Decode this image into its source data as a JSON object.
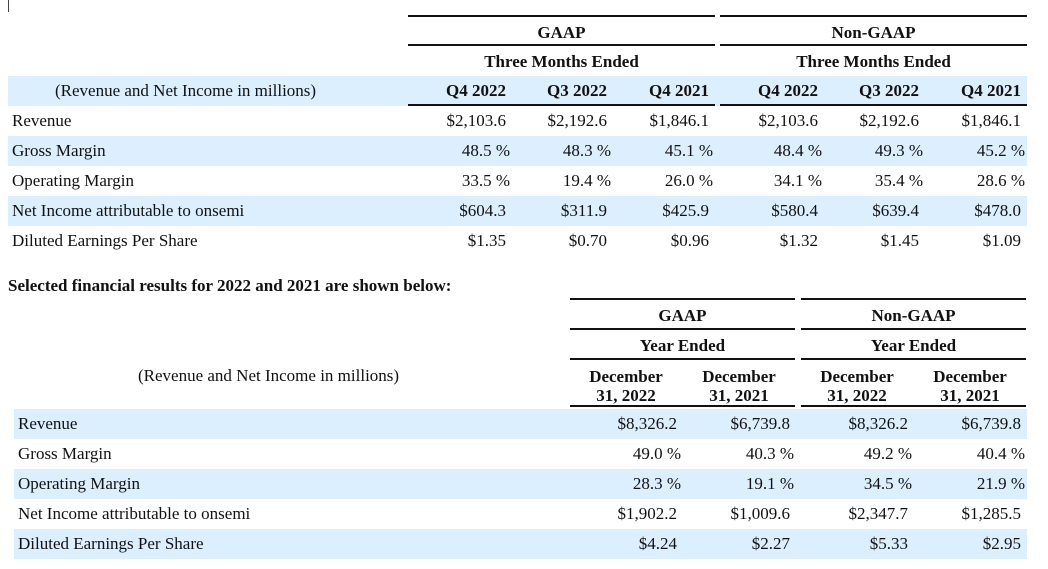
{
  "quarterly": {
    "groups": {
      "gaap": "GAAP",
      "non_gaap": "Non-GAAP"
    },
    "period_label": "Three Months Ended",
    "unit_caption": "(Revenue and Net Income in millions)",
    "columns": [
      "Q4 2022",
      "Q3 2022",
      "Q4 2021",
      "Q4 2022",
      "Q3 2022",
      "Q4 2021"
    ],
    "rows": [
      {
        "label": "Revenue",
        "values": [
          "$2,103.6",
          "$2,192.6",
          "$1,846.1",
          "$2,103.6",
          "$2,192.6",
          "$1,846.1"
        ]
      },
      {
        "label": "Gross Margin",
        "values": [
          "48.5 %",
          "48.3 %",
          "45.1 %",
          "48.4 %",
          "49.3 %",
          "45.2 %"
        ]
      },
      {
        "label": "Operating Margin",
        "values": [
          "33.5 %",
          "19.4 %",
          "26.0 %",
          "34.1 %",
          "35.4 %",
          "28.6 %"
        ]
      },
      {
        "label": "Net Income attributable to onsemi",
        "values": [
          "$604.3",
          "$311.9",
          "$425.9",
          "$580.4",
          "$639.4",
          "$478.0"
        ]
      },
      {
        "label": "Diluted Earnings Per Share",
        "values": [
          "$1.35",
          "$0.70",
          "$0.96",
          "$1.32",
          "$1.45",
          "$1.09"
        ]
      }
    ]
  },
  "section_title": "Selected financial results for 2022 and 2021 are shown below:",
  "annual": {
    "groups": {
      "gaap": "GAAP",
      "non_gaap": "Non-GAAP"
    },
    "period_label": "Year Ended",
    "unit_caption": "(Revenue and Net Income in millions)",
    "columns": [
      [
        "December",
        "31, 2022"
      ],
      [
        "December",
        "31, 2021"
      ],
      [
        "December",
        "31, 2022"
      ],
      [
        "December",
        "31, 2021"
      ]
    ],
    "rows": [
      {
        "label": "Revenue",
        "values": [
          "$8,326.2",
          "$6,739.8",
          "$8,326.2",
          "$6,739.8"
        ]
      },
      {
        "label": "Gross Margin",
        "values": [
          "49.0 %",
          "40.3 %",
          "49.2 %",
          "40.4 %"
        ]
      },
      {
        "label": "Operating Margin",
        "values": [
          "28.3 %",
          "19.1 %",
          "34.5 %",
          "21.9 %"
        ]
      },
      {
        "label": "Net Income attributable to onsemi",
        "values": [
          "$1,902.2",
          "$1,009.6",
          "$2,347.7",
          "$1,285.5"
        ]
      },
      {
        "label": "Diluted Earnings Per Share",
        "values": [
          "$4.24",
          "$2.27",
          "$5.33",
          "$2.95"
        ]
      }
    ]
  },
  "colors": {
    "band": "#dcefff",
    "rule": "#111111"
  }
}
